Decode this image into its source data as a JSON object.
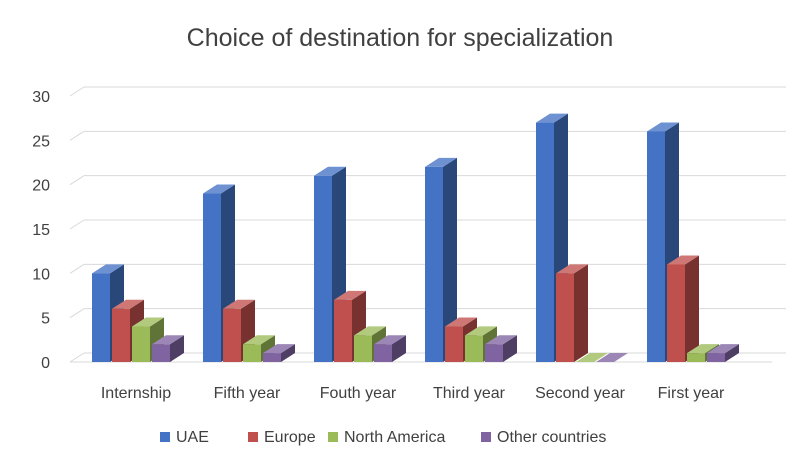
{
  "chart_data": {
    "type": "bar",
    "title": "Choice of destination for specialization",
    "xlabel": "",
    "ylabel": "",
    "ylim": [
      0,
      30
    ],
    "yticks": [
      0,
      5,
      10,
      15,
      20,
      25,
      30
    ],
    "grid": true,
    "legend_position": "bottom",
    "categories": [
      "Internship",
      "Fifth year",
      "Fouth year",
      "Third year",
      "Second year",
      "First year"
    ],
    "series": [
      {
        "name": "UAE",
        "color": "#4472C4",
        "values": [
          10,
          19,
          21,
          22,
          27,
          26
        ]
      },
      {
        "name": "Europe",
        "color": "#C0504D",
        "values": [
          6,
          6,
          7,
          4,
          10,
          11
        ]
      },
      {
        "name": "North America",
        "color": "#9BBB59",
        "values": [
          4,
          2,
          3,
          3,
          0,
          1
        ]
      },
      {
        "name": "Other countries",
        "color": "#8064A2",
        "values": [
          2,
          1,
          2,
          2,
          0,
          1
        ]
      }
    ]
  }
}
